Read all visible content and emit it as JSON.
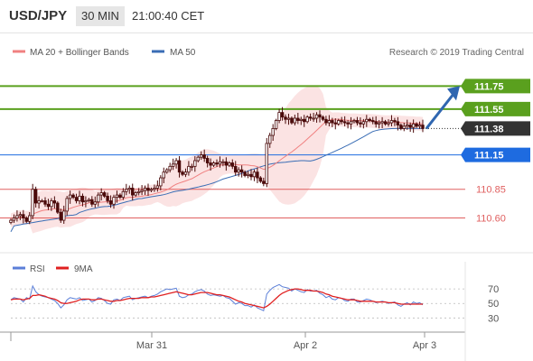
{
  "header": {
    "symbol": "USD/JPY",
    "interval": "30 MIN",
    "time": "21:00:40 CET"
  },
  "legend": {
    "ma20": "MA 20 + Bollinger Bands",
    "ma50": "MA 50",
    "credit": "Research © 2019 Trading Central",
    "rsi": "RSI",
    "ma9": "9MA"
  },
  "colors": {
    "ma20": "#f08080",
    "ma50": "#3a6db5",
    "bands": "#fbe3e3",
    "green": "#5aa01e",
    "red": "#e06060",
    "blue": "#1e6be0",
    "arrow": "#2f66b0",
    "rsi": "#5b7fd8",
    "rsi_ma": "#e02020",
    "candle": "#4a0a0a"
  },
  "chart_data": [
    {
      "type": "candlestick",
      "x_ticks": [
        "Mar 31",
        "Apr 2",
        "Apr 3"
      ],
      "ylim": [
        110.36,
        111.95
      ],
      "current_price": 111.38,
      "levels": [
        {
          "value": 111.75,
          "label": "111.75",
          "style": "green-box"
        },
        {
          "value": 111.55,
          "label": "111.55",
          "style": "green-box"
        },
        {
          "value": 111.38,
          "label": "111.38",
          "style": "dark-box"
        },
        {
          "value": 111.15,
          "label": "111.15",
          "style": "blue-box"
        },
        {
          "value": 110.85,
          "label": "110.85",
          "style": "red-text"
        },
        {
          "value": 110.6,
          "label": "110.60",
          "style": "red-text"
        }
      ],
      "projection": {
        "from": 111.38,
        "to": 111.75
      },
      "close": [
        110.58,
        110.6,
        110.62,
        110.63,
        110.6,
        110.57,
        110.62,
        110.85,
        110.73,
        110.75,
        110.75,
        110.72,
        110.7,
        110.75,
        110.73,
        110.65,
        110.58,
        110.66,
        110.77,
        110.8,
        110.78,
        110.75,
        110.79,
        110.74,
        110.75,
        110.76,
        110.72,
        110.74,
        110.8,
        110.82,
        110.79,
        110.75,
        110.72,
        110.78,
        110.8,
        110.78,
        110.83,
        110.85,
        110.86,
        110.8,
        110.82,
        110.83,
        110.84,
        110.86,
        110.84,
        110.85,
        110.86,
        110.88,
        110.95,
        111.0,
        111.02,
        111.05,
        111.07,
        111.1,
        111.0,
        110.98,
        111.0,
        111.05,
        111.05,
        111.1,
        111.13,
        111.15,
        111.12,
        111.08,
        111.06,
        111.08,
        111.07,
        111.09,
        111.09,
        111.06,
        111.08,
        111.05,
        111.0,
        111.02,
        111.0,
        110.97,
        110.98,
        110.96,
        111.0,
        110.95,
        110.92,
        110.9,
        111.25,
        111.32,
        111.38,
        111.45,
        111.52,
        111.48,
        111.46,
        111.47,
        111.43,
        111.47,
        111.45,
        111.46,
        111.44,
        111.48,
        111.47,
        111.47,
        111.5,
        111.48,
        111.46,
        111.43,
        111.45,
        111.43,
        111.42,
        111.45,
        111.44,
        111.43,
        111.42,
        111.44,
        111.45,
        111.43,
        111.42,
        111.44,
        111.46,
        111.45,
        111.44,
        111.42,
        111.43,
        111.44,
        111.42,
        111.43,
        111.45,
        111.44,
        111.41,
        111.38,
        111.4,
        111.41,
        111.39,
        111.42,
        111.4,
        111.41,
        111.38
      ],
      "ma50_start": 110.48,
      "ma50_end": 111.38
    },
    {
      "type": "line",
      "name": "RSI",
      "y_ticks": [
        70,
        50,
        30
      ],
      "ylim": [
        18,
        90
      ],
      "series": [
        {
          "name": "RSI",
          "values": [
            55,
            58,
            57,
            56,
            52,
            58,
            56,
            74,
            66,
            62,
            60,
            59,
            58,
            56,
            54,
            50,
            44,
            48,
            55,
            58,
            57,
            56,
            58,
            54,
            55,
            56,
            52,
            54,
            58,
            57,
            54,
            50,
            49,
            55,
            56,
            54,
            58,
            59,
            60,
            55,
            57,
            58,
            59,
            60,
            58,
            60,
            61,
            63,
            66,
            68,
            70,
            69,
            70,
            71,
            60,
            58,
            59,
            62,
            63,
            66,
            68,
            69,
            67,
            63,
            61,
            62,
            61,
            60,
            61,
            58,
            57,
            53,
            49,
            51,
            50,
            47,
            47,
            45,
            48,
            44,
            42,
            40,
            63,
            68,
            72,
            74,
            76,
            73,
            72,
            71,
            67,
            70,
            68,
            66,
            65,
            69,
            67,
            67,
            68,
            64,
            62,
            58,
            60,
            56,
            55,
            58,
            57,
            54,
            53,
            56,
            56,
            52,
            52,
            54,
            56,
            55,
            53,
            51,
            52,
            53,
            52,
            50,
            51,
            52,
            48,
            46,
            49,
            51,
            48,
            52,
            50,
            51,
            48
          ]
        },
        {
          "name": "9MA",
          "values": [
            55,
            56,
            56,
            56,
            55,
            56,
            57,
            61,
            61,
            62,
            61,
            60,
            58,
            57,
            56,
            54,
            51,
            50,
            50,
            51,
            52,
            53,
            55,
            56,
            56,
            56,
            55,
            55,
            56,
            56,
            55,
            54,
            53,
            53,
            54,
            54,
            55,
            56,
            57,
            57,
            57,
            57,
            58,
            58,
            58,
            59,
            59,
            60,
            61,
            62,
            63,
            64,
            65,
            66,
            65,
            64,
            63,
            62,
            62,
            63,
            64,
            65,
            65,
            65,
            64,
            63,
            62,
            62,
            61,
            60,
            59,
            57,
            55,
            53,
            52,
            50,
            49,
            48,
            47,
            46,
            45,
            44,
            46,
            49,
            53,
            57,
            61,
            64,
            66,
            68,
            69,
            70,
            70,
            69,
            68,
            68,
            68,
            67,
            67,
            66,
            65,
            63,
            62,
            60,
            59,
            58,
            57,
            56,
            55,
            55,
            55,
            54,
            53,
            53,
            53,
            53,
            53,
            52,
            52,
            52,
            52,
            51,
            51,
            51,
            50,
            49,
            49,
            49,
            49,
            49,
            49,
            49,
            49
          ]
        }
      ]
    }
  ]
}
